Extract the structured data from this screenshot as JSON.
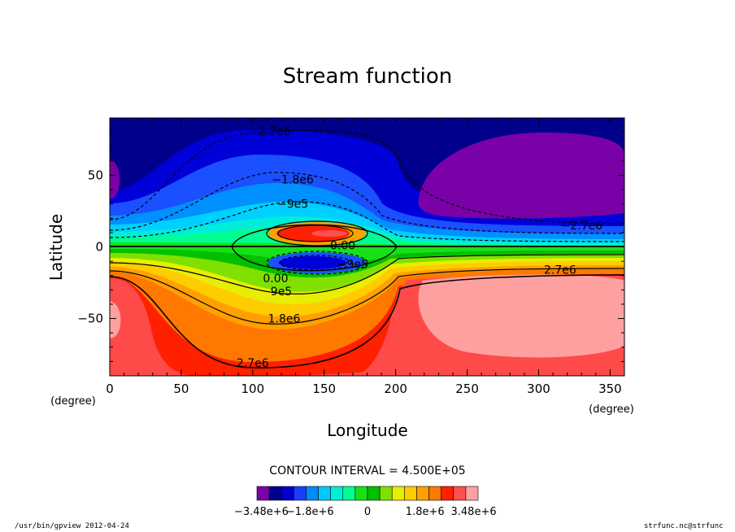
{
  "chart_data": {
    "type": "contour",
    "title": "Stream function",
    "xlabel": "Longitude",
    "ylabel": "Latitude",
    "x_unit": "(degree)",
    "y_unit": "(degree)",
    "xlim": [
      0,
      360
    ],
    "ylim": [
      -90,
      90
    ],
    "x_ticks": [
      0,
      50,
      100,
      150,
      200,
      250,
      300,
      350
    ],
    "y_ticks": [
      -50,
      0,
      50
    ],
    "x_tick_labels": [
      "0",
      "50",
      "100",
      "150",
      "200",
      "250",
      "300",
      "350"
    ],
    "y_tick_labels": [
      "−50",
      "0",
      "50"
    ],
    "contour_interval_text": "CONTOUR INTERVAL = 4.500E+05",
    "contour_interval": 450000,
    "contour_labels": [
      {
        "text": "−2.7e6",
        "lon": 112,
        "lat": 81
      },
      {
        "text": "−1.8e6",
        "lon": 128,
        "lat": 47
      },
      {
        "text": "−9e5",
        "lon": 128,
        "lat": 30
      },
      {
        "text": "−2.7e6",
        "lon": 330,
        "lat": 15
      },
      {
        "text": "0.00",
        "lon": 163,
        "lat": 1
      },
      {
        "text": "−9e5",
        "lon": 170,
        "lat": -12
      },
      {
        "text": "2.7e6",
        "lon": 315,
        "lat": -16
      },
      {
        "text": "0.00",
        "lon": 116,
        "lat": -22
      },
      {
        "text": "9e5",
        "lon": 120,
        "lat": -31
      },
      {
        "text": "1.8e6",
        "lon": 122,
        "lat": -50
      },
      {
        "text": "2.7e6",
        "lon": 100,
        "lat": -81
      }
    ],
    "colorbar": {
      "colors": [
        "#7a00a8",
        "#00008c",
        "#0000c8",
        "#1a3cff",
        "#0088ff",
        "#00c8ff",
        "#00eed8",
        "#00ff90",
        "#18e018",
        "#00c000",
        "#80e000",
        "#e8ee00",
        "#ffcc00",
        "#ffa000",
        "#ff7800",
        "#ff2000",
        "#ff5050",
        "#ffa0a0"
      ],
      "tick_labels": [
        "−3.48e+6",
        "−1.8e+6",
        "0",
        "1.8e+6",
        "3.48e+6"
      ]
    }
  },
  "footer": {
    "left": "/usr/bin/gpview   2012-04-24",
    "right": "strfunc.nc@strfunc"
  }
}
